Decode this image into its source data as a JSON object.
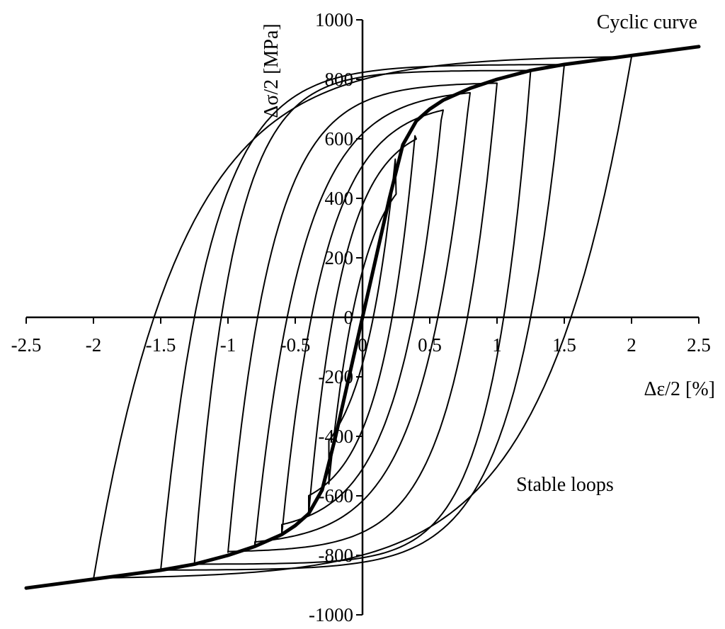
{
  "chart_data": {
    "type": "line",
    "title": "",
    "xlabel": "Δε/2 [%]",
    "ylabel": "Δσ/2 [MPa]",
    "xlim": [
      -2.5,
      2.5
    ],
    "ylim": [
      -1000,
      1000
    ],
    "x_ticks": [
      -2.5,
      -2,
      -1.5,
      -1,
      -0.5,
      0,
      0.5,
      1,
      1.5,
      2,
      2.5
    ],
    "x_tick_labels": [
      "-2.5",
      "-2",
      "-1.5",
      "-1",
      "-0.5",
      "0",
      "0.5",
      "1",
      "1.5",
      "2",
      "2.5"
    ],
    "y_ticks": [
      -1000,
      -800,
      -600,
      -400,
      -200,
      0,
      200,
      400,
      600,
      800,
      1000
    ],
    "y_tick_labels": [
      "-1000",
      "-800",
      "-600",
      "-400",
      "-200",
      "0",
      "200",
      "400",
      "600",
      "800",
      "1000"
    ],
    "grid": false,
    "legend": "none",
    "annotations": [
      "Cyclic curve",
      "Stable loops"
    ],
    "cyclic_curve": {
      "x": [
        0,
        0.1,
        0.2,
        0.3,
        0.4,
        0.5,
        0.6,
        0.8,
        1.0,
        1.25,
        1.5,
        2.0,
        2.5
      ],
      "y": [
        0,
        200,
        400,
        580,
        660,
        700,
        730,
        770,
        800,
        830,
        850,
        880,
        910
      ]
    },
    "stable_loops": [
      {
        "amplitude": 0.25,
        "stress": 560,
        "zero_x": 0.08
      },
      {
        "amplitude": 0.4,
        "stress": 660,
        "zero_x": 0.22
      },
      {
        "amplitude": 0.6,
        "stress": 730,
        "zero_x": 0.38
      },
      {
        "amplitude": 0.8,
        "stress": 770,
        "zero_x": 0.56
      },
      {
        "amplitude": 1.0,
        "stress": 790,
        "zero_x": 0.78
      },
      {
        "amplitude": 1.25,
        "stress": 830,
        "zero_x": 1.05
      },
      {
        "amplitude": 1.5,
        "stress": 850,
        "zero_x": 1.25
      },
      {
        "amplitude": 2.0,
        "stress": 880,
        "zero_x": 1.55
      }
    ],
    "colors": {
      "line": "#000000",
      "background": "#ffffff"
    }
  }
}
